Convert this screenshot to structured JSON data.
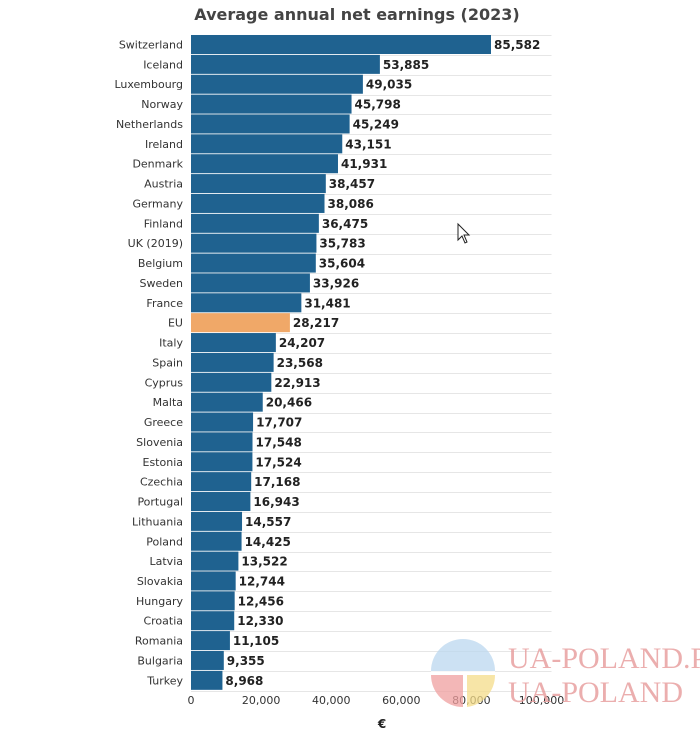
{
  "chart_data": {
    "type": "bar",
    "orientation": "horizontal",
    "title": "Average annual net earnings (2023)",
    "xlabel": "€",
    "ylabel": "",
    "xlim": [
      0,
      100000
    ],
    "x_ticks": [
      0,
      20000,
      40000,
      60000,
      80000,
      100000
    ],
    "x_tick_labels": [
      "0",
      "20,000",
      "40,000",
      "60,000",
      "80,000",
      "100,000"
    ],
    "grid": true,
    "categories": [
      "Switzerland",
      "Iceland",
      "Luxembourg",
      "Norway",
      "Netherlands",
      "Ireland",
      "Denmark",
      "Austria",
      "Germany",
      "Finland",
      "UK (2019)",
      "Belgium",
      "Sweden",
      "France",
      "EU",
      "Italy",
      "Spain",
      "Cyprus",
      "Malta",
      "Greece",
      "Slovenia",
      "Estonia",
      "Czechia",
      "Portugal",
      "Lithuania",
      "Poland",
      "Latvia",
      "Slovakia",
      "Hungary",
      "Croatia",
      "Romania",
      "Bulgaria",
      "Turkey"
    ],
    "values": [
      85582,
      53885,
      49035,
      45798,
      45249,
      43151,
      41931,
      38457,
      38086,
      36475,
      35783,
      35604,
      33926,
      31481,
      28217,
      24207,
      23568,
      22913,
      20466,
      17707,
      17548,
      17524,
      17168,
      16943,
      14557,
      14425,
      13522,
      12744,
      12456,
      12330,
      11105,
      9355,
      8968
    ],
    "value_labels": [
      "85,582",
      "53,885",
      "49,035",
      "45,798",
      "45,249",
      "43,151",
      "41,931",
      "38,457",
      "38,086",
      "36,475",
      "35,783",
      "35,604",
      "33,926",
      "31,481",
      "28,217",
      "24,207",
      "23,568",
      "22,913",
      "20,466",
      "17,707",
      "17,548",
      "17,524",
      "17,168",
      "16,943",
      "14,557",
      "14,425",
      "13,522",
      "12,744",
      "12,456",
      "12,330",
      "11,105",
      "9,355",
      "8,968"
    ],
    "colors": {
      "default": "#1f6290",
      "highlight": "#f0a868"
    },
    "highlight_category": "EU"
  },
  "watermark": {
    "line1": "UA-POLAND.PL",
    "line2": "UA-POLAND"
  },
  "icons": {
    "cursor": "mouse-cursor-icon",
    "logo": "watermark-logo-icon"
  }
}
